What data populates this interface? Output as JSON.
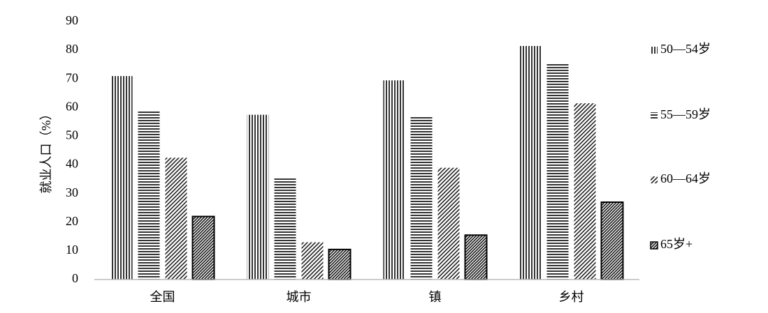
{
  "chart_data": {
    "type": "bar",
    "y_label": "就业人口（%）",
    "categories": [
      "全国",
      "城市",
      "镇",
      "乡村"
    ],
    "series": [
      {
        "name": "50—54岁",
        "color": "#000000",
        "values": [
          71,
          57.5,
          69.5,
          81.5
        ]
      },
      {
        "name": "55—59岁",
        "color": "#000000",
        "values": [
          59,
          35.5,
          57,
          75.5
        ]
      },
      {
        "name": "60—64岁",
        "color": "#000000",
        "values": [
          42.5,
          13,
          39,
          61.5
        ]
      },
      {
        "name": "65岁+",
        "color": "#000000",
        "values": [
          22,
          10.5,
          15.5,
          27
        ]
      }
    ],
    "ylim": [
      0,
      90
    ],
    "yticks": [
      0,
      10,
      20,
      30,
      40,
      50,
      60,
      70,
      80,
      90
    ],
    "grid": false,
    "legend": "right"
  }
}
